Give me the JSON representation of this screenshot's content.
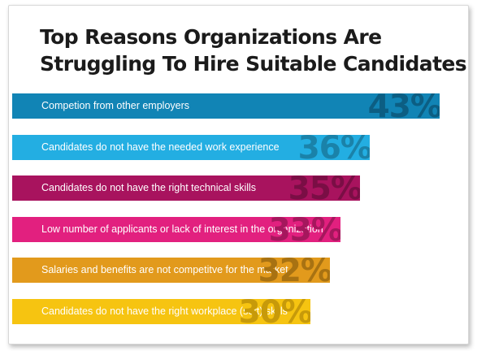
{
  "title_lines": [
    "Top Reasons Organizations Are",
    "Struggling To Hire Suitable Candidates"
  ],
  "chart_data": {
    "type": "bar",
    "orientation": "horizontal",
    "title": "Top Reasons Organizations Are Struggling To Hire Suitable Candidates",
    "categories": [
      "Competion from other employers",
      "Candidates do not have the needed work experience",
      "Candidates do not have the right technical skills",
      "Low number of applicants or lack of interest in the organization",
      "Salaries and benefits are not competitve for the market",
      "Candidates do not have the right workplace (soft) skills"
    ],
    "values": [
      43,
      36,
      35,
      33,
      32,
      30
    ],
    "value_labels": [
      "43%",
      "36%",
      "35%",
      "33%",
      "32%",
      "30%"
    ],
    "bar_colors": [
      "#1184b5",
      "#23aee2",
      "#a8135e",
      "#e2207f",
      "#e29a1c",
      "#f6c411"
    ],
    "value_label_colors": [
      "#0c5e83",
      "#1a82a9",
      "#7a0e45",
      "#a5175d",
      "#a87212",
      "#c79a0a"
    ],
    "xlim": [
      0,
      43
    ],
    "grid": false,
    "legend": "none"
  }
}
